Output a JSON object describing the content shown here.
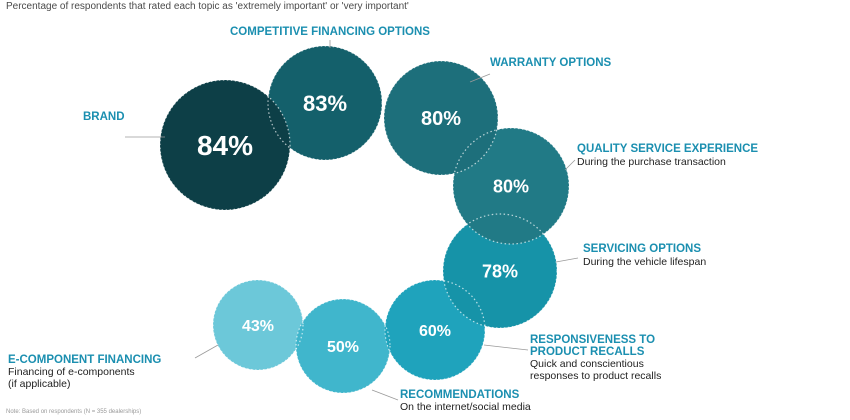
{
  "subtitle": "Percentage of respondents that rated each topic as 'extremely important' or 'very important'",
  "footnote": "Note: Based on respondents (N = 355 dealerships)",
  "colors": {
    "label": "#1b8fb0",
    "leader": "#9a9a9a",
    "text_dark": "#222222"
  },
  "chart_data": {
    "type": "bubble",
    "title": "",
    "subtitle": "Percentage of respondents that rated each topic as 'extremely important' or 'very important'",
    "unit": "%",
    "series": [
      {
        "items": [
          {
            "label": "BRAND",
            "sublabel": "",
            "value": 84,
            "value_label": "84%",
            "color": "#0d3f47"
          },
          {
            "label": "COMPETITIVE FINANCING OPTIONS",
            "sublabel": "",
            "value": 83,
            "value_label": "83%",
            "color": "#14606b"
          },
          {
            "label": "WARRANTY OPTIONS",
            "sublabel": "",
            "value": 80,
            "value_label": "80%",
            "color": "#1d6f7b"
          },
          {
            "label": "QUALITY SERVICE EXPERIENCE",
            "sublabel": "During the purchase transaction",
            "value": 80,
            "value_label": "80%",
            "color": "#217a86"
          },
          {
            "label": "SERVICING OPTIONS",
            "sublabel": "During the vehicle lifespan",
            "value": 78,
            "value_label": "78%",
            "color": "#1693a8"
          },
          {
            "label": "RESPONSIVENESS TO PRODUCT RECALLS",
            "sublabel": "Quick and conscientious responses to product recalls",
            "value": 60,
            "value_label": "60%",
            "color": "#1fa3bc"
          },
          {
            "label": "RECOMMENDATIONS",
            "sublabel": "On the internet/social media",
            "value": 50,
            "value_label": "50%",
            "color": "#40b6cc"
          },
          {
            "label": "E-COMPONENT FINANCING",
            "sublabel": "Financing of e-components (if applicable)",
            "value": 43,
            "value_label": "43%",
            "color": "#6cc8d9"
          }
        ]
      }
    ]
  }
}
